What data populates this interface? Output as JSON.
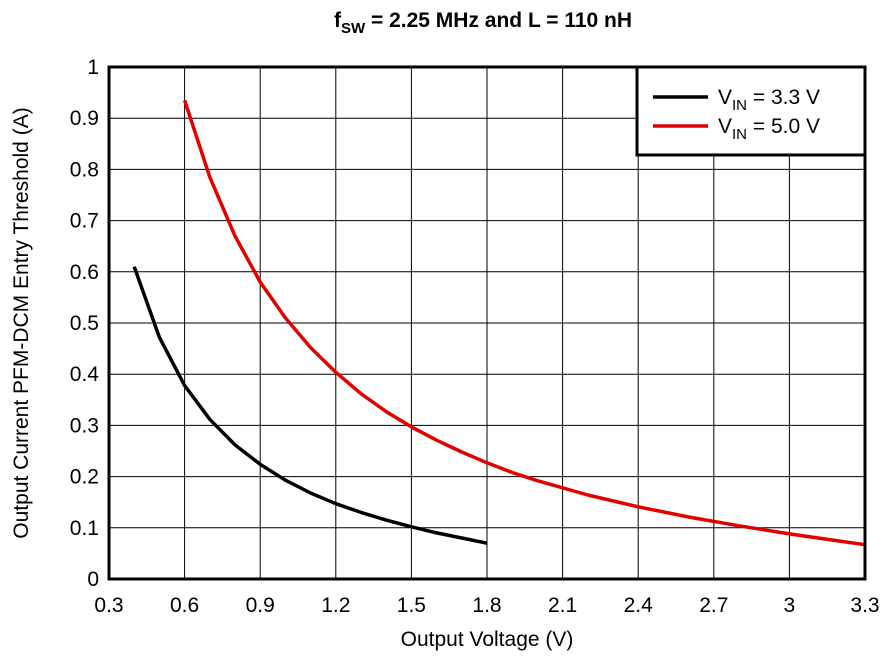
{
  "chart_data": {
    "type": "line",
    "title": {
      "main": "f",
      "sub": "SW",
      "rest": " = 2.25 MHz and L = 110 nH"
    },
    "xlabel": "Output Voltage (V)",
    "ylabel": "Output Current PFM-DCM Entry Threshold (A)",
    "xlim": [
      0.3,
      3.3
    ],
    "ylim": [
      0,
      1
    ],
    "xticks": [
      0.3,
      0.6,
      0.9,
      1.2,
      1.5,
      1.8,
      2.1,
      2.4,
      2.7,
      3,
      3.3
    ],
    "yticks": [
      0,
      0.1,
      0.2,
      0.3,
      0.4,
      0.5,
      0.6,
      0.7,
      0.8,
      0.9,
      1
    ],
    "xtick_labels": [
      "0.3",
      "0.6",
      "0.9",
      "1.2",
      "1.5",
      "1.8",
      "2.1",
      "2.4",
      "2.7",
      "3",
      "3.3"
    ],
    "ytick_labels": [
      "0",
      "0.1",
      "0.2",
      "0.3",
      "0.4",
      "0.5",
      "0.6",
      "0.7",
      "0.8",
      "0.9",
      "1"
    ],
    "grid": true,
    "legend_position": "top-right",
    "series": [
      {
        "name_main": "V",
        "name_sub": "IN",
        "name_rest": " = 3.3 V",
        "color": "#000000",
        "x": [
          0.4,
          0.5,
          0.6,
          0.7,
          0.8,
          0.9,
          1.0,
          1.1,
          1.2,
          1.3,
          1.4,
          1.5,
          1.6,
          1.7,
          1.8
        ],
        "y": [
          0.61,
          0.472,
          0.378,
          0.312,
          0.262,
          0.224,
          0.193,
          0.168,
          0.147,
          0.13,
          0.115,
          0.102,
          0.09,
          0.08,
          0.07
        ]
      },
      {
        "name_main": "V",
        "name_sub": "IN",
        "name_rest": " = 5.0 V",
        "color": "#e00000",
        "x": [
          0.6,
          0.7,
          0.8,
          0.9,
          1.0,
          1.1,
          1.2,
          1.3,
          1.4,
          1.5,
          1.6,
          1.7,
          1.8,
          1.9,
          2.0,
          2.2,
          2.4,
          2.6,
          2.8,
          3.0,
          3.2,
          3.3
        ],
        "y": [
          0.935,
          0.785,
          0.67,
          0.58,
          0.51,
          0.452,
          0.404,
          0.362,
          0.327,
          0.297,
          0.271,
          0.248,
          0.227,
          0.208,
          0.192,
          0.164,
          0.141,
          0.121,
          0.104,
          0.088,
          0.074,
          0.067
        ]
      }
    ]
  }
}
